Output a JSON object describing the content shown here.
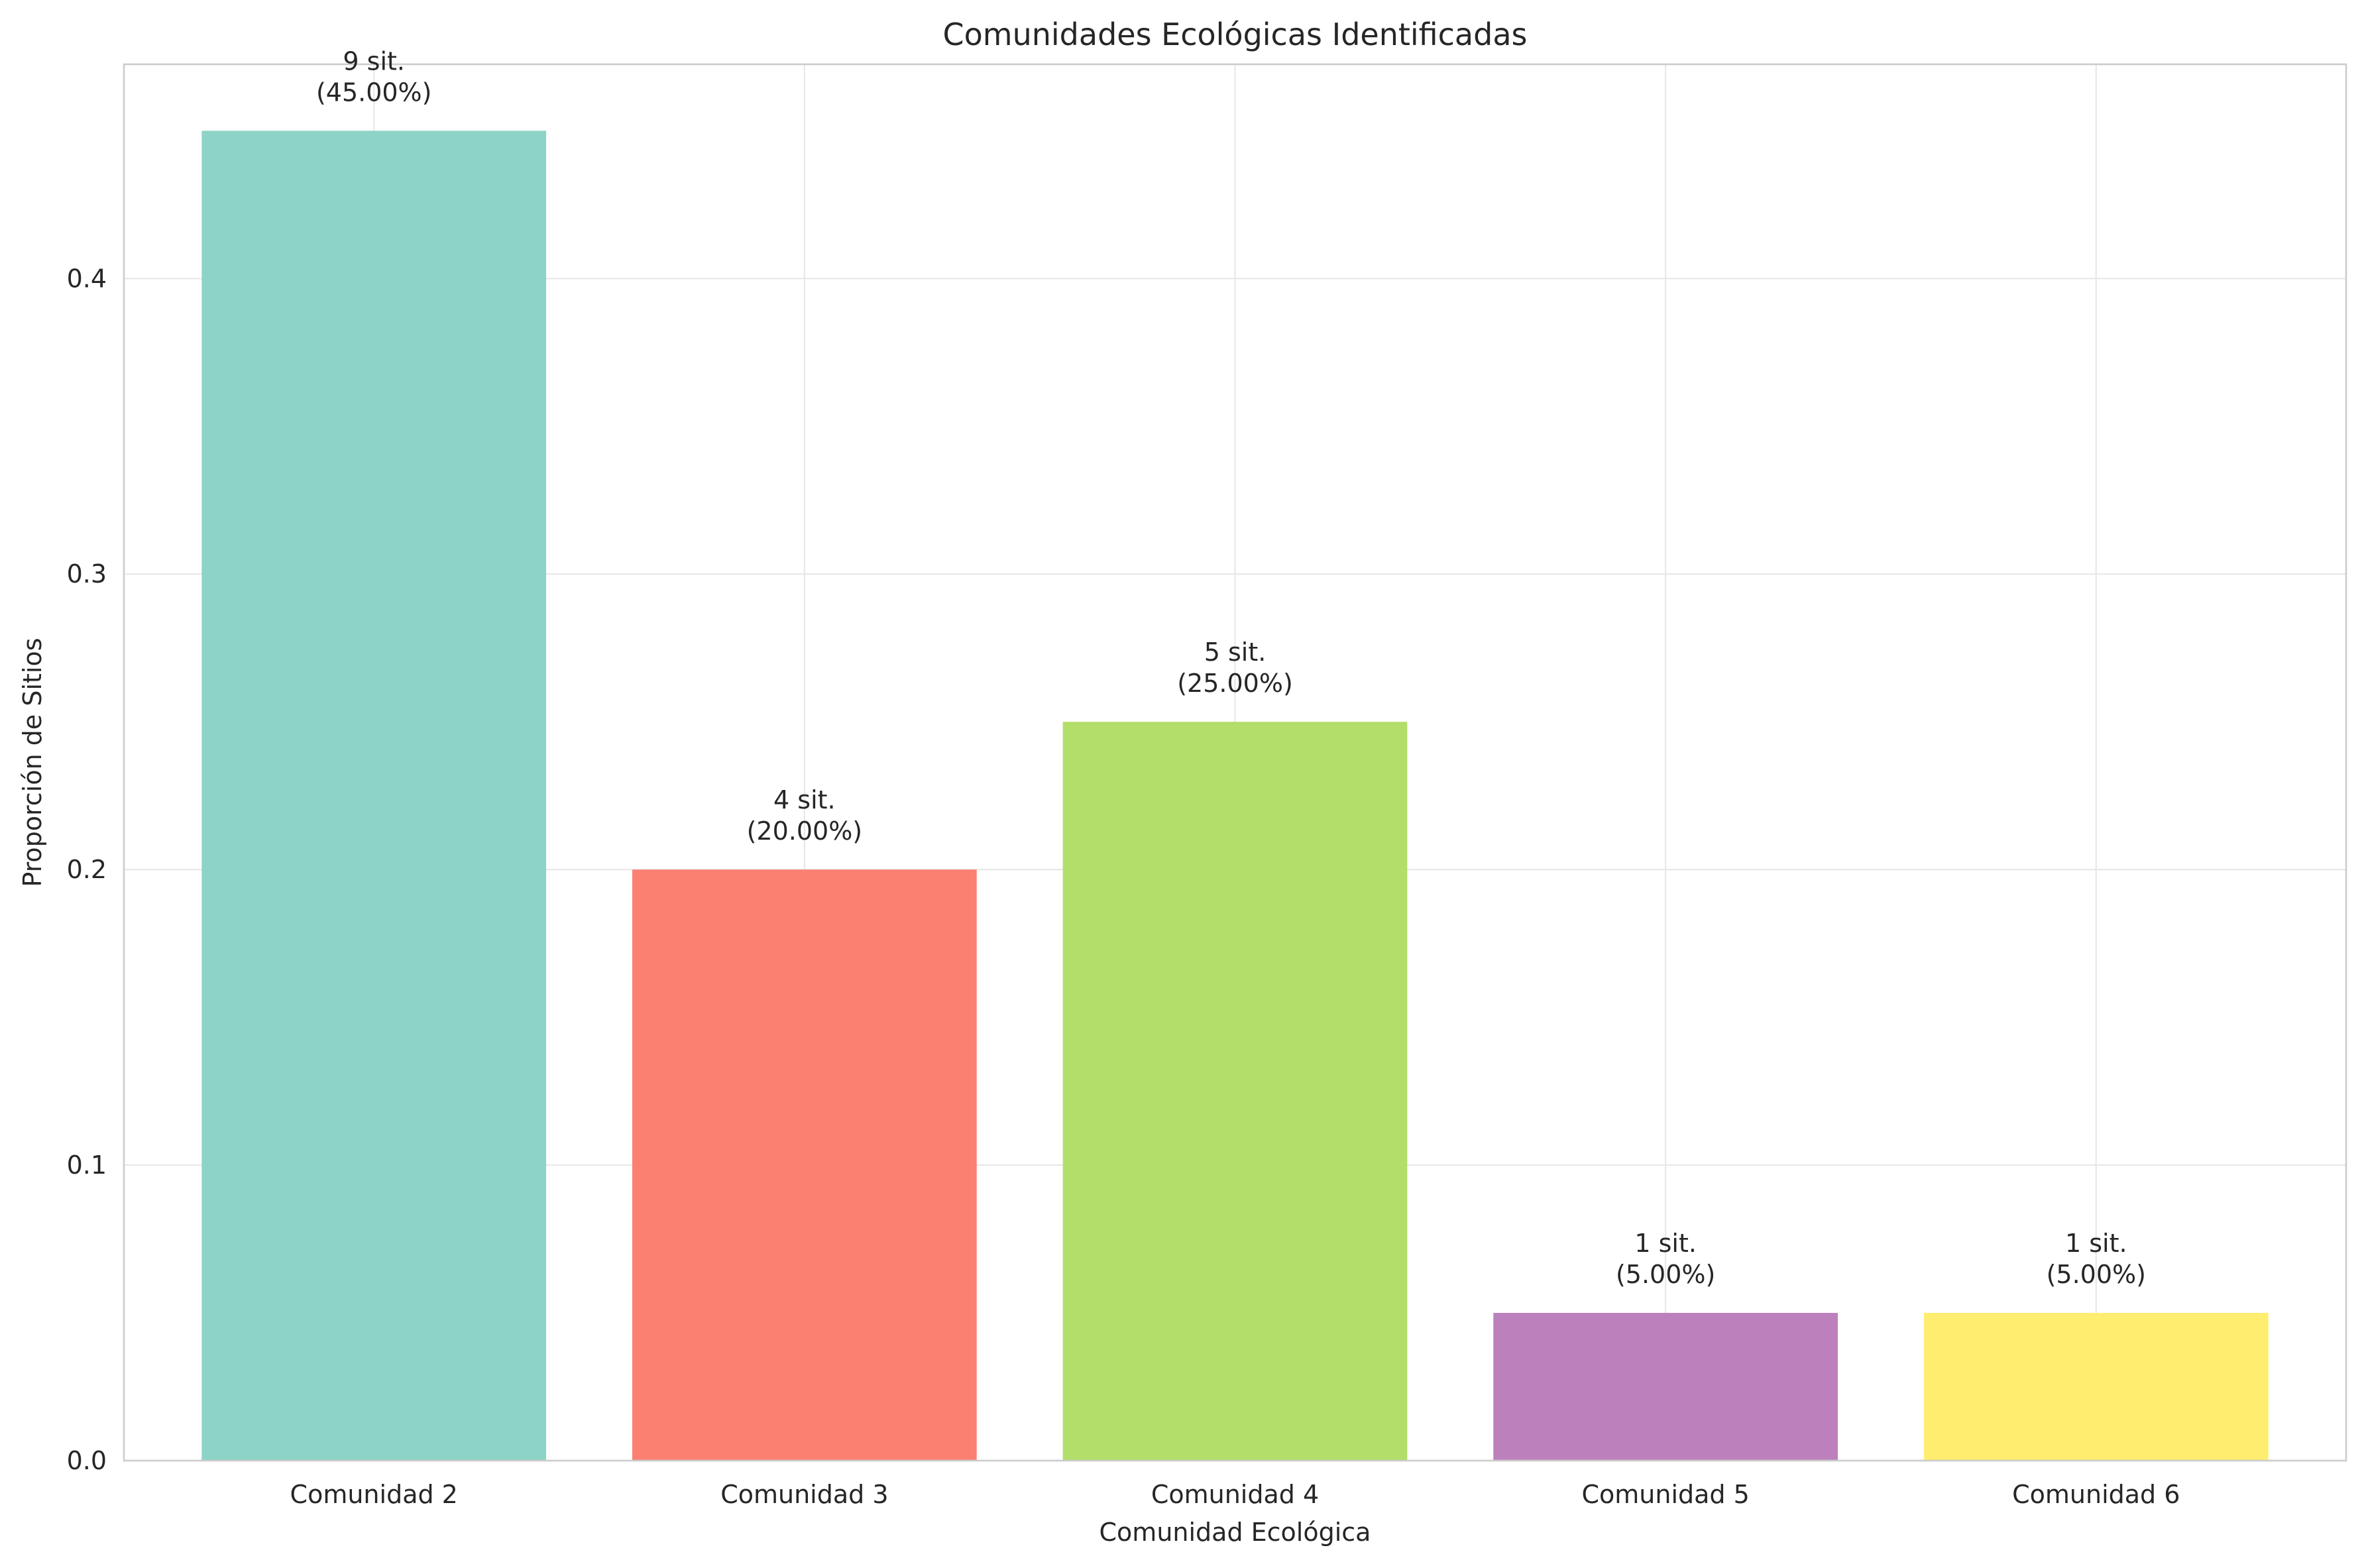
{
  "chart_data": {
    "type": "bar",
    "title": "Comunidades Ecológicas Identificadas",
    "xlabel": "Comunidad Ecológica",
    "ylabel": "Proporción de Sitios",
    "categories": [
      "Comunidad 2",
      "Comunidad 3",
      "Comunidad 4",
      "Comunidad 5",
      "Comunidad 6"
    ],
    "values": [
      0.45,
      0.2,
      0.25,
      0.05,
      0.05
    ],
    "bar_labels": [
      [
        "9 sit.",
        "(45.00%)"
      ],
      [
        "4 sit.",
        "(20.00%)"
      ],
      [
        "5 sit.",
        "(25.00%)"
      ],
      [
        "1 sit.",
        "(5.00%)"
      ],
      [
        "1 sit.",
        "(5.00%)"
      ]
    ],
    "colors": [
      "#8dd3c7",
      "#fb8072",
      "#b3de69",
      "#bc80bd",
      "#ffed6f"
    ],
    "ylim": [
      0,
      0.4725
    ],
    "yticks": [
      0.0,
      0.1,
      0.2,
      0.3,
      0.4
    ],
    "ytick_labels": [
      "0.0",
      "0.1",
      "0.2",
      "0.3",
      "0.4"
    ],
    "grid": true,
    "legend": "none"
  }
}
